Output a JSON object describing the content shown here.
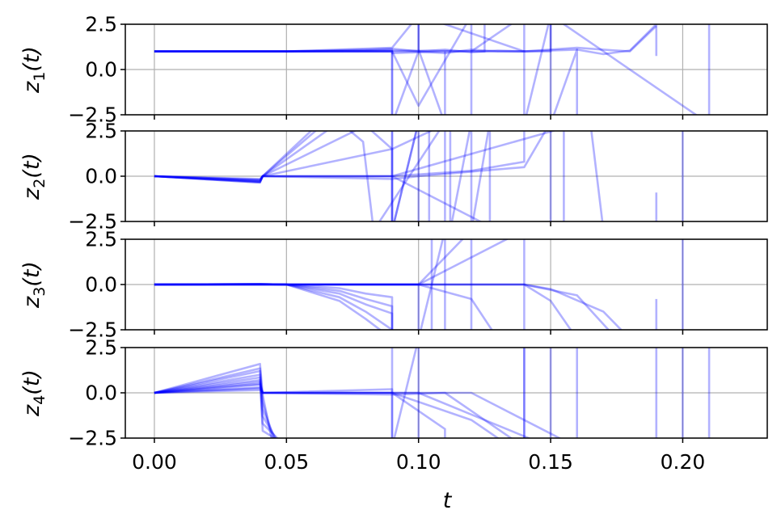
{
  "chart_data": {
    "type": "line",
    "shared_x": true,
    "xlabel": "t",
    "xlim": [
      -0.011,
      0.232
    ],
    "xticks": [
      0.0,
      0.05,
      0.1,
      0.15,
      0.2
    ],
    "xtick_labels": [
      "0.00",
      "0.05",
      "0.10",
      "0.15",
      "0.20"
    ],
    "grid": true,
    "line_color": "#0000ff",
    "line_alpha": 0.3,
    "panels": [
      {
        "ylabel_base": "z",
        "ylabel_sub": "1",
        "ylabel_arg": "(t)",
        "ylim": [
          -2.5,
          2.5
        ],
        "yticks": [
          -2.5,
          0.0,
          2.5
        ],
        "ytick_labels": [
          "−2.5",
          "0.0",
          "2.5"
        ],
        "series": [
          {
            "x": [
              0,
              0.05,
              0.08,
              0.09,
              0.09,
              0.1,
              0.11,
              0.12,
              0.13,
              0.14,
              0.16,
              0.17,
              0.18,
              0.19,
              0.19
            ],
            "y": [
              1.0,
              1.0,
              1.05,
              1.1,
              -3.0,
              1.0,
              0.9,
              1.1,
              1.0,
              1.0,
              1.1,
              0.85,
              1.05,
              2.5,
              0.75
            ]
          },
          {
            "x": [
              0,
              0.05,
              0.08,
              0.09,
              0.1,
              0.11,
              0.12,
              0.13,
              0.14,
              0.16,
              0.17,
              0.18,
              0.19
            ],
            "y": [
              1.0,
              1.0,
              1.1,
              1.15,
              1.0,
              1.1,
              0.95,
              1.05,
              1.0,
              1.2,
              1.1,
              1.0,
              2.4
            ]
          },
          {
            "x": [
              0,
              0.05,
              0.08,
              0.09,
              0.1,
              0.1,
              0.11,
              0.11
            ],
            "y": [
              1.0,
              1.0,
              1.15,
              1.2,
              3.0,
              1.1,
              -3.0,
              1.0
            ]
          },
          {
            "x": [
              0,
              0.05,
              0.09,
              0.1,
              0.12,
              0.12
            ],
            "y": [
              1.0,
              1.0,
              1.0,
              -2.0,
              3.0,
              1.0
            ]
          },
          {
            "x": [
              0,
              0.05,
              0.09,
              0.09,
              0.11,
              0.125,
              0.125
            ],
            "y": [
              1.0,
              1.0,
              1.0,
              0.9,
              1.0,
              1.0,
              3.0
            ]
          },
          {
            "x": [
              0,
              0.05,
              0.09,
              0.09,
              0.12,
              0.12,
              0.14,
              0.14
            ],
            "y": [
              1.0,
              1.0,
              1.0,
              -3.0,
              -3.0,
              1.0,
              3.0,
              1.0
            ]
          },
          {
            "x": [
              0,
              0.05,
              0.09,
              0.13,
              0.14,
              0.14,
              0.15,
              0.15,
              0.16,
              0.16
            ],
            "y": [
              1.0,
              1.0,
              1.05,
              1.0,
              1.0,
              -3.0,
              3.0,
              -3.0,
              1.1,
              -3.0
            ]
          },
          {
            "x": [
              0,
              0.05,
              0.09,
              0.1,
              0.1,
              0.14,
              0.15,
              0.15,
              0.21,
              0.21
            ],
            "y": [
              1.0,
              1.0,
              1.0,
              1.0,
              3.0,
              1.0,
              1.0,
              3.0,
              -3.0,
              3.0
            ]
          }
        ]
      },
      {
        "ylabel_base": "z",
        "ylabel_sub": "2",
        "ylabel_arg": "(t)",
        "ylim": [
          -2.5,
          2.5
        ],
        "yticks": [
          -2.5,
          0.0,
          2.5
        ],
        "ytick_labels": [
          "−2.5",
          "0.0",
          "2.5"
        ],
        "series": [
          {
            "x": [
              0,
              0.04,
              0.041,
              0.06,
              0.08,
              0.09,
              0.09,
              0.1,
              0.1
            ],
            "y": [
              0.0,
              -0.3,
              0.0,
              2.6,
              2.8,
              2.9,
              -3.0,
              3.0,
              -3.0
            ]
          },
          {
            "x": [
              0,
              0.04,
              0.041,
              0.065,
              0.085,
              0.09,
              0.09,
              0.104,
              0.104
            ],
            "y": [
              0.0,
              -0.2,
              0.0,
              3.0,
              3.0,
              3.0,
              -3.0,
              -3.0,
              3.0
            ]
          },
          {
            "x": [
              0,
              0.04,
              0.041,
              0.07,
              0.079,
              0.083,
              0.083,
              0.11,
              0.11
            ],
            "y": [
              0.0,
              -0.25,
              0.0,
              3.0,
              1.9,
              -3.0,
              -3.0,
              3.0,
              -3.0
            ]
          },
          {
            "x": [
              0,
              0.04,
              0.041,
              0.08,
              0.09,
              0.09,
              0.1
            ],
            "y": [
              0.0,
              -0.15,
              0.0,
              2.8,
              1.5,
              -3.0,
              3.0
            ]
          },
          {
            "x": [
              0,
              0.04,
              0.041,
              0.09,
              0.112,
              0.112,
              0.12,
              0.12,
              0.127,
              0.127
            ],
            "y": [
              0.0,
              -0.35,
              0.0,
              1.5,
              3.0,
              -3.0,
              3.0,
              -3.0,
              3.0,
              -3.0
            ]
          },
          {
            "x": [
              0,
              0.04,
              0.041,
              0.09,
              0.12,
              0.14,
              0.14
            ],
            "y": [
              0.0,
              -0.3,
              0.0,
              0.0,
              0.3,
              0.8,
              3.0
            ]
          },
          {
            "x": [
              0,
              0.04,
              0.041,
              0.09,
              0.13,
              0.13
            ],
            "y": [
              0.0,
              -0.35,
              0.0,
              0.0,
              -3.0,
              -3.0
            ]
          },
          {
            "x": [
              0,
              0.04,
              0.041,
              0.09,
              0.1,
              0.14,
              0.15,
              0.15,
              0.155,
              0.155
            ],
            "y": [
              0.0,
              -0.3,
              0.0,
              -0.15,
              0.0,
              0.5,
              3.0,
              -3.0,
              -3.0,
              3.0
            ]
          },
          {
            "x": [
              0,
              0.04,
              0.041,
              0.09,
              0.163,
              0.165,
              0.17,
              0.17
            ],
            "y": [
              0.0,
              -0.2,
              0.0,
              0.0,
              3.0,
              3.0,
              -3.0,
              -3.0
            ]
          },
          {
            "x": [
              0.19,
              0.19
            ],
            "y": [
              -0.9,
              -3.0
            ]
          },
          {
            "x": [
              0.2,
              0.2
            ],
            "y": [
              -3.0,
              3.0
            ]
          }
        ]
      },
      {
        "ylabel_base": "z",
        "ylabel_sub": "3",
        "ylabel_arg": "(t)",
        "ylim": [
          -2.5,
          2.5
        ],
        "yticks": [
          -2.5,
          0.0,
          2.5
        ],
        "ytick_labels": [
          "−2.5",
          "0.0",
          "2.5"
        ],
        "series": [
          {
            "x": [
              0,
              0.04,
              0.05,
              0.07,
              0.08,
              0.09,
              0.09
            ],
            "y": [
              0.0,
              0.02,
              0.0,
              -0.2,
              -0.5,
              -0.7,
              -3.0
            ]
          },
          {
            "x": [
              0,
              0.04,
              0.05,
              0.07,
              0.08,
              0.09,
              0.09
            ],
            "y": [
              0.0,
              0.02,
              0.0,
              -0.35,
              -0.8,
              -1.2,
              -3.0
            ]
          },
          {
            "x": [
              0,
              0.04,
              0.05,
              0.07,
              0.08,
              0.09,
              0.09
            ],
            "y": [
              0.0,
              0.02,
              0.0,
              -0.5,
              -1.1,
              -1.6,
              -3.0
            ]
          },
          {
            "x": [
              0,
              0.04,
              0.05,
              0.07,
              0.08,
              0.09
            ],
            "y": [
              0.0,
              0.02,
              0.0,
              -0.7,
              -1.5,
              -2.5
            ]
          },
          {
            "x": [
              0,
              0.04,
              0.05,
              0.07,
              0.08,
              0.09
            ],
            "y": [
              0.0,
              0.02,
              0.0,
              -0.9,
              -1.9,
              -3.0
            ]
          },
          {
            "x": [
              0,
              0.04,
              0.05,
              0.09,
              0.1,
              0.1,
              0.11,
              0.11
            ],
            "y": [
              0.0,
              0.02,
              0.0,
              0.0,
              0.0,
              -3.0,
              3.0,
              -3.0
            ]
          },
          {
            "x": [
              0,
              0.05,
              0.09,
              0.1,
              0.12,
              0.12
            ],
            "y": [
              0.0,
              0.0,
              0.0,
              0.0,
              3.0,
              -3.0
            ]
          },
          {
            "x": [
              0,
              0.05,
              0.09,
              0.1,
              0.12,
              0.13
            ],
            "y": [
              0.0,
              0.0,
              0.0,
              0.0,
              -0.8,
              -3.0
            ]
          },
          {
            "x": [
              0,
              0.05,
              0.09,
              0.1,
              0.14,
              0.14
            ],
            "y": [
              0.0,
              0.0,
              0.0,
              0.0,
              3.0,
              -3.0
            ]
          },
          {
            "x": [
              0,
              0.05,
              0.09,
              0.14,
              0.15,
              0.16
            ],
            "y": [
              0.0,
              0.0,
              0.0,
              0.0,
              -0.9,
              -3.0
            ]
          },
          {
            "x": [
              0,
              0.05,
              0.09,
              0.14,
              0.16,
              0.175
            ],
            "y": [
              0.0,
              0.0,
              0.0,
              0.0,
              -0.6,
              -3.0
            ]
          },
          {
            "x": [
              0,
              0.05,
              0.09,
              0.14,
              0.15,
              0.17,
              0.18
            ],
            "y": [
              0.0,
              0.0,
              0.0,
              0.0,
              -0.25,
              -1.5,
              -3.0
            ]
          },
          {
            "x": [
              0.105,
              0.105
            ],
            "y": [
              -3.0,
              3.0
            ]
          },
          {
            "x": [
              0.19,
              0.19
            ],
            "y": [
              -3.0,
              -0.8
            ]
          },
          {
            "x": [
              0.2,
              0.2
            ],
            "y": [
              -3.0,
              3.0
            ]
          }
        ]
      },
      {
        "ylabel_base": "z",
        "ylabel_sub": "4",
        "ylabel_arg": "(t)",
        "ylim": [
          -2.5,
          2.5
        ],
        "yticks": [
          -2.5,
          0.0,
          2.5
        ],
        "ytick_labels": [
          "−2.5",
          "0.0",
          "2.5"
        ],
        "series": [
          {
            "x": [
              0,
              0.04,
              0.041,
              0.045
            ],
            "y": [
              0.0,
              1.6,
              -0.1,
              -3.0
            ]
          },
          {
            "x": [
              0,
              0.04,
              0.041,
              0.046
            ],
            "y": [
              0.0,
              1.35,
              -0.5,
              -3.0
            ]
          },
          {
            "x": [
              0,
              0.04,
              0.041,
              0.047
            ],
            "y": [
              0.0,
              1.2,
              -0.9,
              -3.0
            ]
          },
          {
            "x": [
              0,
              0.04,
              0.041,
              0.048
            ],
            "y": [
              0.0,
              1.0,
              -1.3,
              -3.0
            ]
          },
          {
            "x": [
              0,
              0.04,
              0.041,
              0.05
            ],
            "y": [
              0.0,
              0.85,
              -1.7,
              -3.0
            ]
          },
          {
            "x": [
              0,
              0.04,
              0.041,
              0.051
            ],
            "y": [
              0.0,
              0.7,
              -2.1,
              -3.0
            ]
          },
          {
            "x": [
              0,
              0.04,
              0.041,
              0.09,
              0.09,
              0.1,
              0.1
            ],
            "y": [
              0.0,
              0.5,
              0.0,
              0.2,
              -3.0,
              3.0,
              -3.0
            ]
          },
          {
            "x": [
              0,
              0.04,
              0.041,
              0.09,
              0.11,
              0.11
            ],
            "y": [
              0.0,
              0.3,
              0.0,
              0.0,
              -2.0,
              -3.0
            ]
          },
          {
            "x": [
              0,
              0.04,
              0.041,
              0.09,
              0.12,
              0.135
            ],
            "y": [
              0.0,
              0.15,
              0.0,
              0.0,
              -1.5,
              -3.0
            ]
          },
          {
            "x": [
              0,
              0.04,
              0.041,
              0.09,
              0.11,
              0.14,
              0.14
            ],
            "y": [
              0.0,
              0.6,
              0.0,
              -0.1,
              0.0,
              -3.0,
              3.0
            ]
          },
          {
            "x": [
              0,
              0.04,
              0.041,
              0.09,
              0.1,
              0.15,
              0.15
            ],
            "y": [
              0.0,
              0.45,
              0.0,
              0.0,
              0.0,
              -3.0,
              3.0
            ]
          },
          {
            "x": [
              0,
              0.04,
              0.041,
              0.09,
              0.12,
              0.16,
              0.16
            ],
            "y": [
              0.0,
              0.25,
              0.0,
              0.0,
              0.0,
              -3.0,
              3.0
            ]
          },
          {
            "x": [
              0.09,
              0.09
            ],
            "y": [
              -3.0,
              3.0
            ]
          },
          {
            "x": [
              0.14,
              0.14
            ],
            "y": [
              -3.0,
              3.0
            ]
          },
          {
            "x": [
              0.19,
              0.19
            ],
            "y": [
              -3.0,
              3.0
            ]
          },
          {
            "x": [
              0.2,
              0.2
            ],
            "y": [
              -3.0,
              3.0
            ]
          },
          {
            "x": [
              0.21,
              0.21
            ],
            "y": [
              -3.0,
              3.0
            ]
          }
        ]
      }
    ]
  }
}
